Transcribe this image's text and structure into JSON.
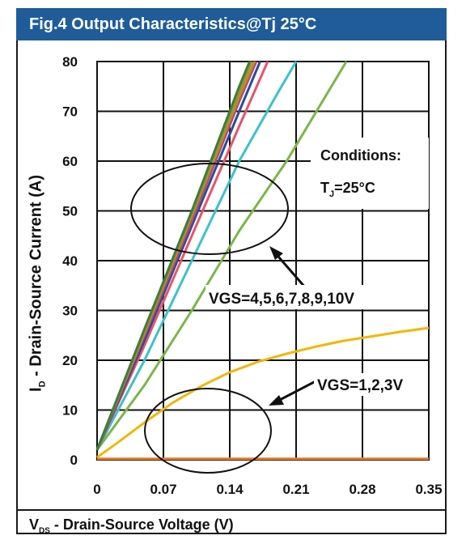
{
  "title": "Fig.4 Output Characteristics@Tj 25°C",
  "xlabel_main": "V",
  "xlabel_sub": "DS",
  "xlabel_rest": " - Drain-Source Voltage (V)",
  "ylabel_main": "I",
  "ylabel_sub": "D",
  "ylabel_rest": " - Drain-Source Current (A)",
  "annotations": {
    "conditions": "Conditions:",
    "tj_main": "T",
    "tj_sub": "J",
    "tj_rest": "=25°C",
    "vgs_high": "VGS=4,5,6,7,8,9,10V",
    "vgs_low": "VGS=1,2,3V"
  },
  "chart_data": {
    "type": "line",
    "xlim": [
      0,
      0.35
    ],
    "ylim": [
      0,
      80
    ],
    "x_ticks": [
      "0",
      "0.07",
      "0.14",
      "0.21",
      "0.28",
      "0.35"
    ],
    "y_ticks": [
      "0",
      "10",
      "20",
      "30",
      "40",
      "50",
      "60",
      "70",
      "80"
    ],
    "grid": true,
    "series": [
      {
        "color": "#e8792a",
        "points": [
          [
            0,
            0.2
          ],
          [
            0.35,
            0.2
          ]
        ]
      },
      {
        "color": "#f2b705",
        "points": [
          [
            0,
            0.5
          ],
          [
            0.02,
            3.2
          ],
          [
            0.05,
            7.5
          ],
          [
            0.08,
            11.5
          ],
          [
            0.11,
            14.8
          ],
          [
            0.14,
            17.6
          ],
          [
            0.17,
            19.7
          ],
          [
            0.2,
            21.3
          ],
          [
            0.23,
            22.7
          ],
          [
            0.26,
            23.9
          ],
          [
            0.29,
            24.8
          ],
          [
            0.32,
            25.7
          ],
          [
            0.35,
            26.5
          ]
        ]
      },
      {
        "color": "#7ab648",
        "points": [
          [
            0,
            2
          ],
          [
            0.05,
            15
          ],
          [
            0.1,
            30
          ],
          [
            0.15,
            46
          ],
          [
            0.2,
            60
          ],
          [
            0.263,
            80
          ]
        ]
      },
      {
        "color": "#3ec1c9",
        "points": [
          [
            0,
            2
          ],
          [
            0.05,
            20
          ],
          [
            0.1,
            40
          ],
          [
            0.15,
            60
          ],
          [
            0.19,
            73.5
          ],
          [
            0.21,
            80
          ]
        ]
      },
      {
        "color": "#e8546a",
        "points": [
          [
            0,
            2
          ],
          [
            0.05,
            23
          ],
          [
            0.1,
            45
          ],
          [
            0.15,
            67
          ],
          [
            0.18,
            80
          ]
        ]
      },
      {
        "color": "#2e4b9c",
        "points": [
          [
            0,
            2
          ],
          [
            0.05,
            24
          ],
          [
            0.1,
            47
          ],
          [
            0.15,
            70
          ],
          [
            0.172,
            80
          ]
        ]
      },
      {
        "color": "#b0506a",
        "points": [
          [
            0,
            2
          ],
          [
            0.05,
            25
          ],
          [
            0.1,
            48
          ],
          [
            0.15,
            72
          ],
          [
            0.168,
            80
          ]
        ]
      },
      {
        "color": "#c8862a",
        "points": [
          [
            0,
            2
          ],
          [
            0.05,
            25.5
          ],
          [
            0.1,
            49
          ],
          [
            0.15,
            73
          ],
          [
            0.166,
            80
          ]
        ]
      },
      {
        "color": "#8a9a3a",
        "points": [
          [
            0,
            2
          ],
          [
            0.05,
            26
          ],
          [
            0.1,
            49.5
          ],
          [
            0.15,
            74
          ],
          [
            0.163,
            80
          ]
        ]
      },
      {
        "color": "#3e7d3a",
        "points": [
          [
            0,
            2
          ],
          [
            0.05,
            26.3
          ],
          [
            0.1,
            50
          ],
          [
            0.15,
            75
          ],
          [
            0.161,
            80
          ]
        ]
      }
    ]
  }
}
